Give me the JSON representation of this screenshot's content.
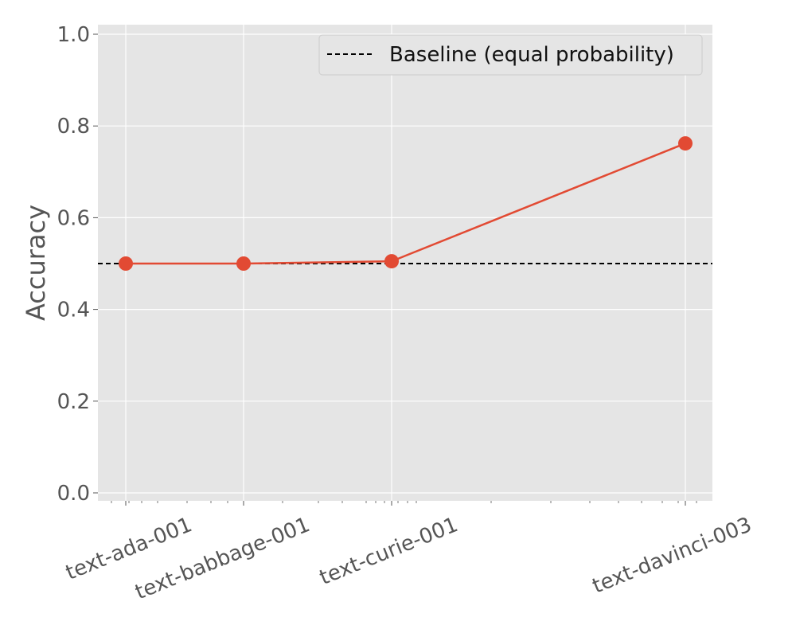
{
  "chart_data": {
    "type": "line",
    "title": "",
    "xlabel": "",
    "ylabel": "Accuracy",
    "x_scale": "log",
    "categories": [
      "text-ada-001",
      "text-babbage-001",
      "text-curie-001",
      "text-davinci-003"
    ],
    "series": [
      {
        "values": [
          0.5,
          0.5,
          0.505,
          0.762
        ],
        "color": "#E24A33"
      }
    ],
    "baseline": {
      "name": "Baseline (equal probability)",
      "value": 0.5,
      "color": "#000000",
      "style": "dashed"
    },
    "ylim": [
      0.0,
      1.0
    ],
    "yticks": [
      "0.0",
      "0.2",
      "0.4",
      "0.6",
      "0.8",
      "1.0"
    ],
    "grid": true,
    "legend_position": "top-right",
    "background": "#E5E5E5"
  }
}
